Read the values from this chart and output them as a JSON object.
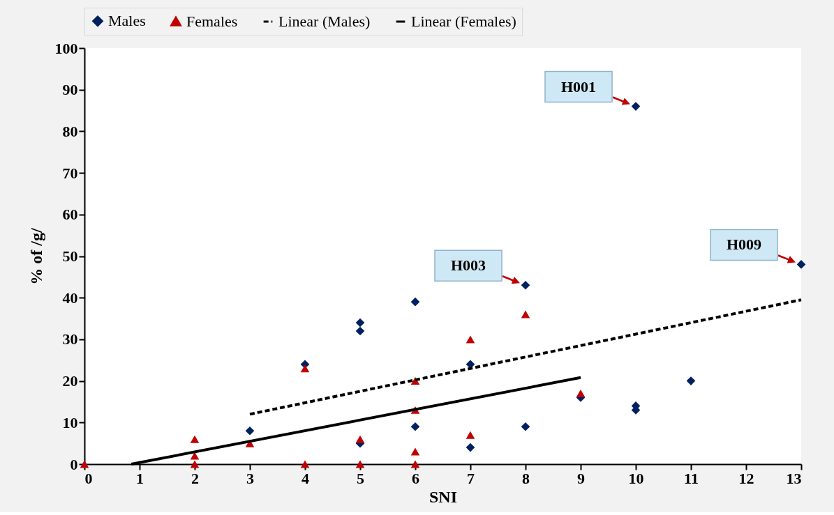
{
  "chart_data": {
    "type": "scatter",
    "xlabel": "SNI",
    "ylabel": "% of /g/",
    "xlim": [
      0,
      13
    ],
    "ylim": [
      0,
      100
    ],
    "xticks": [
      0,
      1,
      2,
      3,
      4,
      5,
      6,
      7,
      8,
      9,
      10,
      11,
      12,
      13
    ],
    "yticks": [
      0,
      10,
      20,
      30,
      40,
      50,
      60,
      70,
      80,
      90,
      100
    ],
    "grid": false,
    "legend": "top",
    "series": [
      {
        "name": "Males",
        "marker": "diamond",
        "color": "#002060",
        "x": [
          3,
          4,
          5,
          5,
          5,
          6,
          6,
          7,
          7,
          8,
          8,
          9,
          10,
          10,
          10,
          11,
          13
        ],
        "values": [
          8,
          24,
          34,
          32,
          5,
          39,
          9,
          24,
          4,
          43,
          9,
          16,
          86,
          14,
          13,
          20,
          48
        ]
      },
      {
        "name": "Females",
        "marker": "triangle",
        "color": "#c00000",
        "x": [
          0,
          2,
          2,
          2,
          3,
          4,
          4,
          5,
          5,
          6,
          6,
          6,
          6,
          7,
          7,
          8,
          9
        ],
        "values": [
          0,
          6,
          2,
          0,
          5,
          23,
          0,
          6,
          0,
          20,
          13,
          3,
          0,
          30,
          7,
          36,
          17
        ]
      },
      {
        "name": "Linear (Males)",
        "type": "line",
        "line_style": "dashed",
        "color": "#000000",
        "x": [
          3,
          13
        ],
        "values": [
          12,
          39.5
        ]
      },
      {
        "name": "Linear (Females)",
        "type": "line",
        "line_style": "solid",
        "color": "#000000",
        "x": [
          0.85,
          9
        ],
        "values": [
          0,
          20.8
        ]
      }
    ],
    "annotations": [
      {
        "text": "H001",
        "x": 10,
        "y": 86
      },
      {
        "text": "H003",
        "x": 8,
        "y": 43
      },
      {
        "text": "H009",
        "x": 13,
        "y": 48
      }
    ]
  }
}
